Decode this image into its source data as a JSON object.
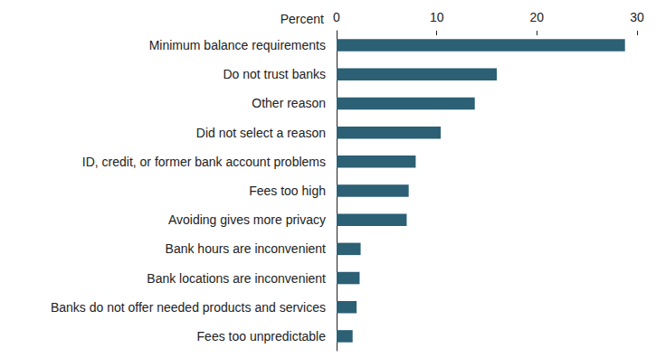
{
  "chart_data": {
    "type": "bar",
    "orientation": "horizontal",
    "x_label": "Percent",
    "categories": [
      "Minimum balance requirements",
      "Do not trust banks",
      "Other reason",
      "Did not select a reason",
      "ID, credit, or former bank account problems",
      "Fees too high",
      "Avoiding gives more privacy",
      "Bank hours are inconvenient",
      "Bank locations are inconvenient",
      "Banks do not offer needed products and services",
      "Fees too unpredictable"
    ],
    "values": [
      28.8,
      16.0,
      13.8,
      10.4,
      7.9,
      7.2,
      7.0,
      2.4,
      2.3,
      2.0,
      1.6
    ],
    "color": "#2b6075",
    "xlim": [
      0,
      30
    ],
    "xticks": [
      0,
      10,
      20,
      30
    ],
    "grid": false
  }
}
